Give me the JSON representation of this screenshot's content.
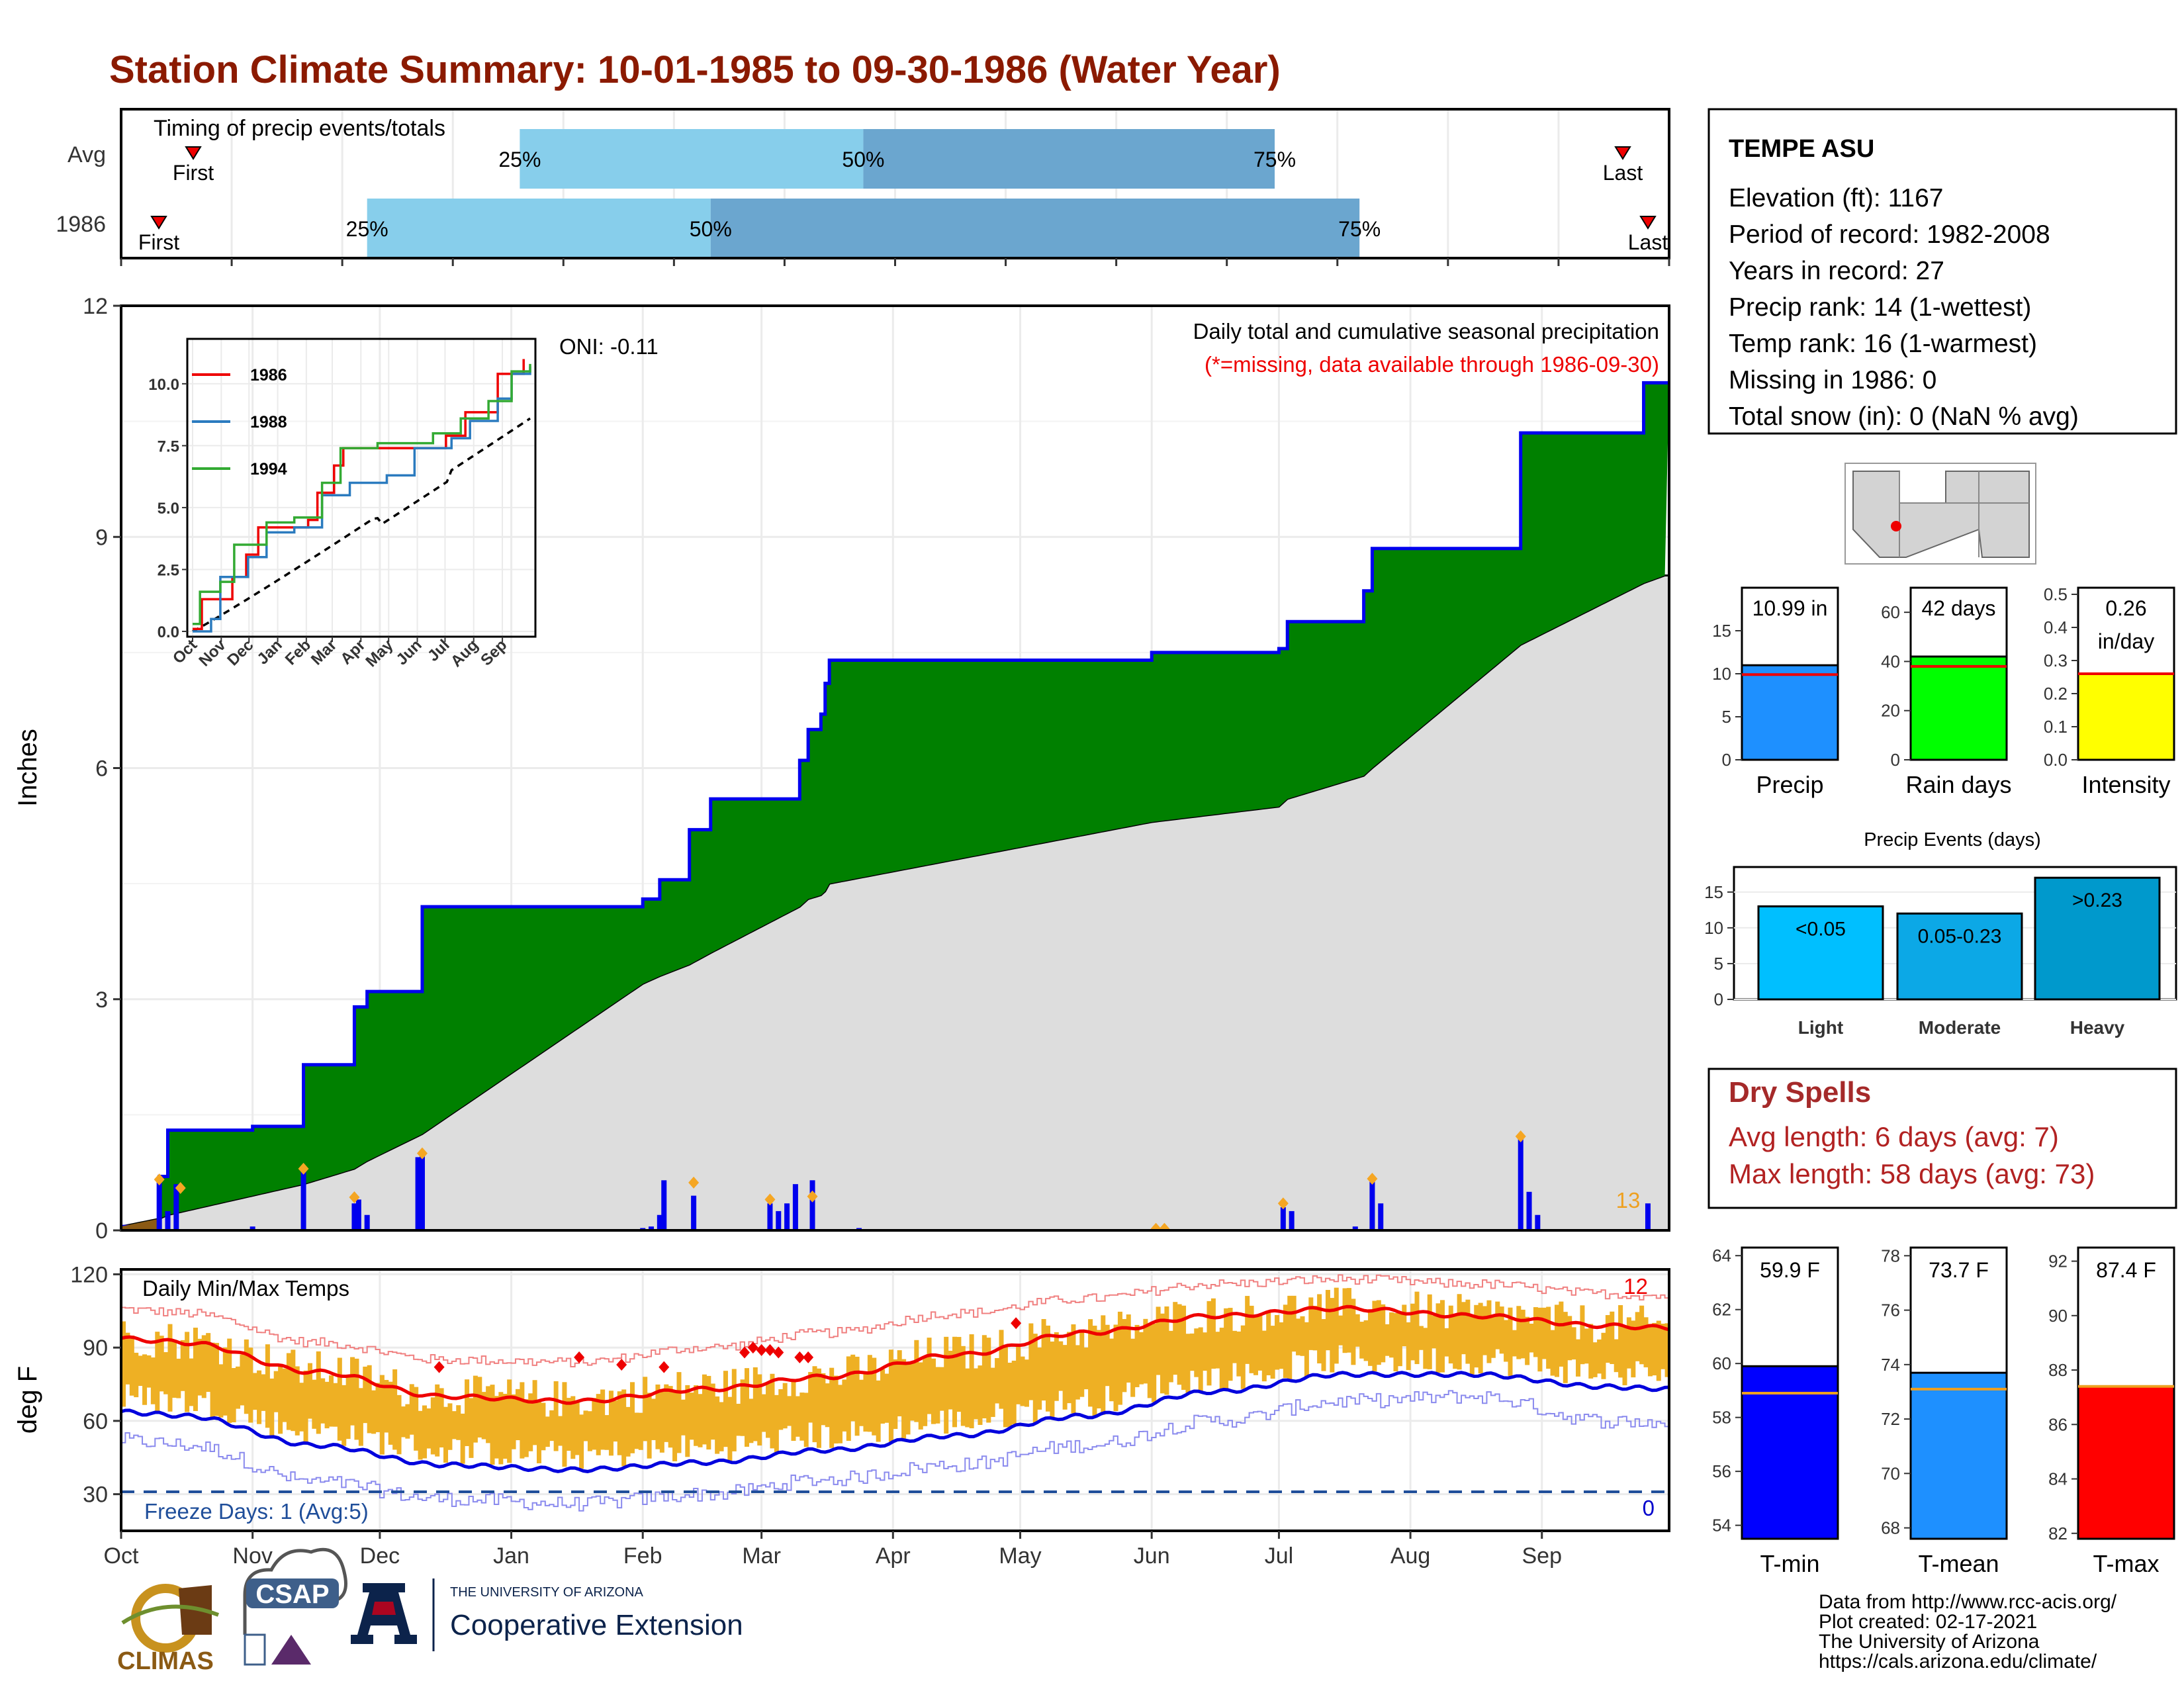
{
  "title": "Station Climate Summary: 10-01-1985 to 09-30-1986 (Water Year)",
  "colors": {
    "title": "#8B1A00",
    "green": "#008000",
    "blue": "#0000EE",
    "orange": "#EEB024",
    "gray": "#DDDDDD",
    "red": "#EE0000",
    "light_blue": "#87CEEB",
    "med_blue": "#6BA6CF"
  },
  "timing": {
    "title": "Timing of precip events/totals",
    "rows": [
      {
        "label": "Avg",
        "first_label": "First",
        "last_label": "Last",
        "first_day": 6,
        "last_day": 358,
        "q25": "25%",
        "q50": "50%",
        "q75": "75%",
        "q25_day": 94,
        "q50_day": 175,
        "q75_day": 272
      },
      {
        "label": "1986",
        "first_label": "First",
        "last_label": "Last",
        "first_day": -2,
        "last_day": 364,
        "q25": "25%",
        "q50": "50%",
        "q75": "75%",
        "q25_day": 58,
        "q50_day": 139,
        "q75_day": 292
      }
    ]
  },
  "precip_chart": {
    "ylabel": "Inches",
    "yticks": [
      "0",
      "3",
      "6",
      "9",
      "12"
    ],
    "annotation_title": "Daily total and cumulative seasonal precipitation",
    "annotation_missing": "(*=missing, data available through 1986-09-30)",
    "oni": "ONI: -0.11",
    "count_label": "13"
  },
  "inset": {
    "series": [
      {
        "name": "1986",
        "color": "#EE0000"
      },
      {
        "name": "1988",
        "color": "#2B7BBF"
      },
      {
        "name": "1994",
        "color": "#33AA33"
      }
    ],
    "yticks": [
      "0.0",
      "2.5",
      "5.0",
      "7.5",
      "10.0"
    ],
    "xticks": [
      "Oct",
      "Nov",
      "Dec",
      "Jan",
      "Feb",
      "Mar",
      "Apr",
      "May",
      "Jun",
      "Jul",
      "Aug",
      "Sep"
    ]
  },
  "temp_chart": {
    "title": "Daily Min/Max Temps",
    "ylabel": "deg F",
    "yticks": [
      "30",
      "60",
      "90",
      "120"
    ],
    "freeze": "Freeze Days: 1 (Avg:5)",
    "count_hot": "12",
    "count_cold": "0"
  },
  "months": [
    "Oct",
    "Nov",
    "Dec",
    "Jan",
    "Feb",
    "Mar",
    "Apr",
    "May",
    "Jun",
    "Jul",
    "Aug",
    "Sep"
  ],
  "station": {
    "name": "TEMPE ASU",
    "lines": [
      "Elevation (ft): 1167",
      "Period of record: 1982-2008",
      "Years in record: 27",
      "Precip rank: 14 (1-wettest)",
      "Temp rank: 16 (1-warmest)",
      "Missing in 1986: 0",
      "Total snow (in): 0 (NaN % avg)"
    ]
  },
  "summary_bars": [
    {
      "label": "Precip",
      "value_text": "10.99 in",
      "value": 10.99,
      "avg": 9.9,
      "ymax": 20,
      "yticks": [
        "0",
        "5",
        "10",
        "15"
      ],
      "color": "#1E90FF"
    },
    {
      "label": "Rain days",
      "value_text": "42 days",
      "value": 42,
      "avg": 38,
      "ymax": 70,
      "yticks": [
        "0",
        "20",
        "40",
        "60"
      ],
      "color": "#00FF00"
    },
    {
      "label": "Intensity",
      "value_text": "0.26",
      "value_text2": "in/day",
      "value": 0.26,
      "avg": 0.26,
      "ymax": 0.52,
      "yticks": [
        "0.0",
        "0.1",
        "0.2",
        "0.3",
        "0.4",
        "0.5"
      ],
      "color": "#FFFF00"
    }
  ],
  "precip_events": {
    "title": "Precip Events (days)",
    "yticks": [
      "0",
      "5",
      "10",
      "15"
    ],
    "ymax": 18.5,
    "bars": [
      {
        "label": "Light",
        "inside": "<0.05",
        "value": 13,
        "color": "#00BFFF"
      },
      {
        "label": "Moderate",
        "inside": "0.05-0.23",
        "value": 12,
        "color": "#0CA8E6"
      },
      {
        "label": "Heavy",
        "inside": ">0.23",
        "value": 17,
        "color": "#0099CC"
      }
    ]
  },
  "dry_spells": {
    "title": "Dry Spells",
    "avg": "Avg length: 6 days (avg: 7)",
    "max": "Max length: 58 days (avg: 73)"
  },
  "temp_bars": [
    {
      "label": "T-min",
      "value_text": "59.9 F",
      "value": 59.9,
      "avg": 58.9,
      "ymin": 53.5,
      "ymax": 64.3,
      "yticks": [
        "54",
        "56",
        "58",
        "60",
        "62",
        "64"
      ],
      "color": "#0000FF"
    },
    {
      "label": "T-mean",
      "value_text": "73.7 F",
      "value": 73.7,
      "avg": 73.1,
      "ymin": 67.6,
      "ymax": 78.3,
      "yticks": [
        "68",
        "70",
        "72",
        "74",
        "76",
        "78"
      ],
      "color": "#1E90FF"
    },
    {
      "label": "T-max",
      "value_text": "87.4 F",
      "value": 87.4,
      "avg": 87.4,
      "ymin": 81.8,
      "ymax": 92.5,
      "yticks": [
        "82",
        "84",
        "86",
        "88",
        "90",
        "92"
      ],
      "color": "#FF0000"
    }
  ],
  "footer": {
    "lines": [
      "Data from http://www.rcc-acis.org/",
      "Plot created: 02-17-2021",
      "The University of Arizona",
      "https://cals.arizona.edu/climate/"
    ],
    "logo_climas": "CLIMAS",
    "logo_csap": "CSAP",
    "ua_small": "THE UNIVERSITY OF ARIZONA",
    "ua_big": "Cooperative Extension"
  },
  "chart_data": [
    {
      "type": "area",
      "title": "Daily total and cumulative seasonal precipitation",
      "ylabel": "Inches",
      "ylim": [
        0,
        12
      ],
      "x": [
        "1985-10-01",
        "1985-10-10",
        "1985-10-12",
        "1985-11-01",
        "1985-11-13",
        "1985-11-25",
        "1985-11-28",
        "1985-12-11",
        "1986-02-01",
        "1986-02-05",
        "1986-02-12",
        "1986-02-17",
        "1986-03-10",
        "1986-03-12",
        "1986-03-15",
        "1986-03-16",
        "1986-03-17",
        "1986-06-01",
        "1986-07-01",
        "1986-07-03",
        "1986-07-21",
        "1986-07-23",
        "1986-08-27",
        "1986-09-25",
        "1986-09-30"
      ],
      "series": [
        {
          "name": "1986",
          "values": [
            0.05,
            0.7,
            1.3,
            1.35,
            2.15,
            2.9,
            3.1,
            4.2,
            4.3,
            4.55,
            5.2,
            5.6,
            6.1,
            6.5,
            6.7,
            7.1,
            7.4,
            7.5,
            7.55,
            7.9,
            8.3,
            8.85,
            10.35,
            11.0,
            11.0
          ]
        },
        {
          "name": "Avg",
          "values": [
            0.05,
            0.15,
            0.2,
            0.45,
            0.6,
            0.8,
            0.9,
            1.25,
            3.2,
            3.3,
            3.45,
            3.6,
            4.2,
            4.3,
            4.35,
            4.4,
            4.5,
            5.3,
            5.5,
            5.6,
            5.9,
            6.0,
            7.6,
            8.4,
            8.5
          ]
        }
      ]
    },
    {
      "type": "line",
      "title": "Daily Min/Max Temps",
      "ylabel": "deg F",
      "ylim": [
        15,
        122
      ],
      "x": [
        "Oct",
        "Nov",
        "Dec",
        "Jan",
        "Feb",
        "Mar",
        "Apr",
        "May",
        "Jun",
        "Jul",
        "Aug",
        "Sep"
      ],
      "series": [
        {
          "name": "Avg Tmax",
          "values": [
            92,
            80,
            70,
            68,
            73,
            78,
            87,
            96,
            103,
            106,
            103,
            99
          ]
        },
        {
          "name": "Avg Tmin",
          "values": [
            62,
            50,
            42,
            40,
            43,
            48,
            54,
            62,
            72,
            79,
            79,
            74
          ]
        },
        {
          "name": "Record high",
          "values": [
            104,
            92,
            85,
            84,
            90,
            96,
            104,
            110,
            116,
            118,
            116,
            112
          ]
        },
        {
          "name": "Record low",
          "values": [
            50,
            35,
            28,
            26,
            30,
            36,
            42,
            50,
            60,
            68,
            70,
            60
          ]
        }
      ]
    }
  ]
}
